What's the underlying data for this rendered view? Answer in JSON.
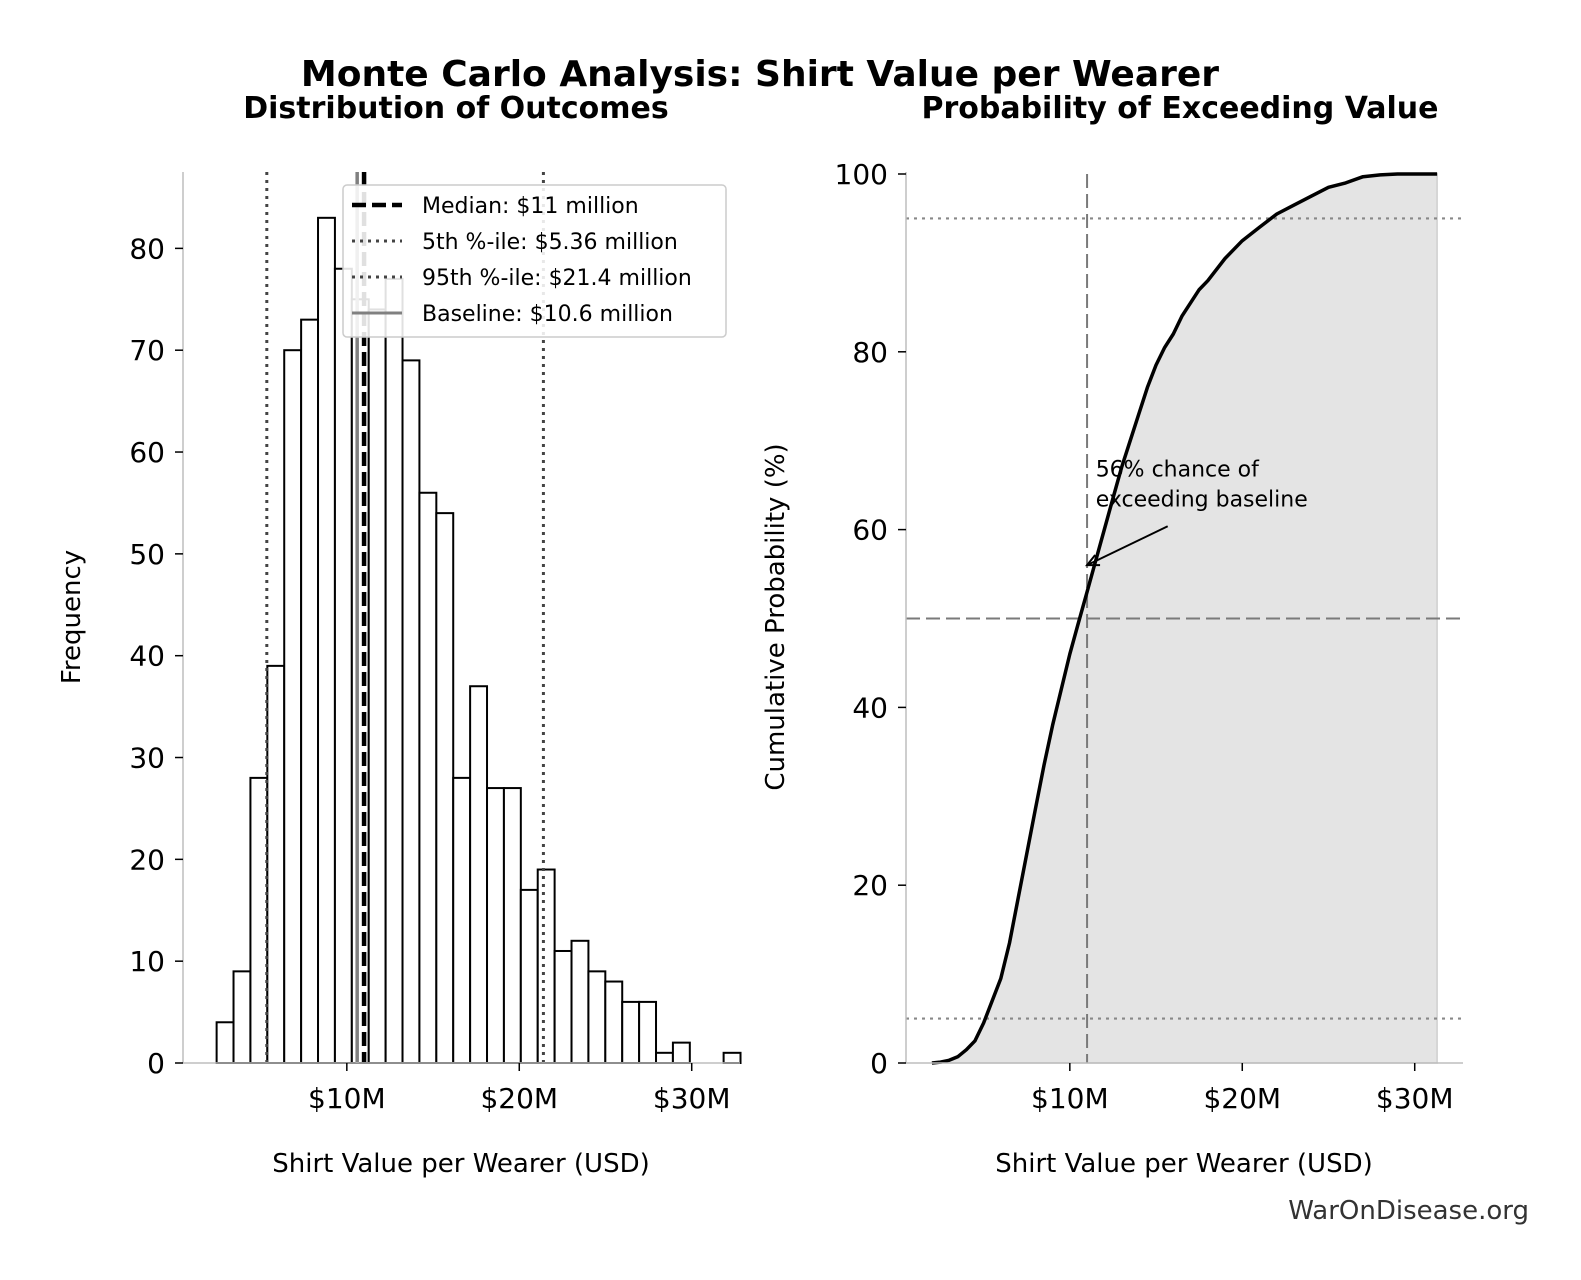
{
  "figure": {
    "title": "Monte Carlo Analysis: Shirt Value per Wearer",
    "watermark": "WarOnDisease.org"
  },
  "chart_data": [
    {
      "type": "bar",
      "title": "Distribution of Outcomes",
      "xlabel": "Shirt Value per Wearer (USD)",
      "ylabel": "Frequency",
      "xlim": [
        0.5,
        32.8
      ],
      "ylim": [
        0,
        87.5
      ],
      "xticks": [
        10,
        20,
        30
      ],
      "xtick_labels": [
        "$10M",
        "$20M",
        "$30M"
      ],
      "yticks": [
        0,
        10,
        20,
        30,
        40,
        50,
        60,
        70,
        80
      ],
      "ytick_labels": [
        "0",
        "10",
        "20",
        "30",
        "40",
        "50",
        "60",
        "70",
        "80"
      ],
      "bins": {
        "start": 2.45,
        "width": 0.98,
        "counts": [
          4,
          9,
          28,
          39,
          70,
          73,
          83,
          78,
          75,
          74,
          77,
          69,
          56,
          54,
          28,
          37,
          27,
          27,
          17,
          19,
          11,
          12,
          9,
          8,
          6,
          6,
          1,
          2,
          0,
          0,
          1
        ]
      },
      "reference_lines": [
        {
          "name": "Median: $11 million",
          "x": 11.0,
          "style": "dashed",
          "color": "#000000"
        },
        {
          "name": "5th %-ile: $5.36 million",
          "x": 5.36,
          "style": "dotted",
          "color": "#444444"
        },
        {
          "name": "95th %-ile: $21.4 million",
          "x": 21.4,
          "style": "dotted",
          "color": "#444444"
        },
        {
          "name": "Baseline: $10.6 million",
          "x": 10.6,
          "style": "solid",
          "color": "#808080"
        }
      ],
      "grid": false,
      "legend": "upper-right"
    },
    {
      "type": "line",
      "title": "Probability of Exceeding Value",
      "xlabel": "Shirt Value per Wearer (USD)",
      "ylabel": "Cumulative Probability (%)",
      "xlim": [
        0.5,
        32.8
      ],
      "ylim": [
        0,
        100
      ],
      "xticks": [
        10,
        20,
        30
      ],
      "xtick_labels": [
        "$10M",
        "$20M",
        "$30M"
      ],
      "yticks": [
        0,
        20,
        40,
        60,
        80,
        100
      ],
      "ytick_labels": [
        "0",
        "20",
        "40",
        "60",
        "80",
        "100"
      ],
      "x": [
        2.0,
        2.5,
        3.0,
        3.5,
        4.0,
        4.5,
        5.0,
        5.5,
        6.0,
        6.5,
        7.0,
        7.5,
        8.0,
        8.5,
        9.0,
        9.5,
        10.0,
        10.5,
        11.0,
        11.5,
        12.0,
        12.5,
        13.0,
        13.5,
        14.0,
        14.5,
        15.0,
        15.5,
        16.0,
        16.5,
        17.0,
        17.5,
        18.0,
        19.0,
        20.0,
        21.0,
        22.0,
        23.0,
        24.0,
        25.0,
        26.0,
        27.0,
        28.0,
        29.0,
        30.0,
        31.3
      ],
      "y": [
        0.0,
        0.1,
        0.3,
        0.7,
        1.5,
        2.5,
        4.5,
        7.0,
        9.5,
        13.5,
        18.5,
        23.5,
        28.5,
        33.5,
        38.0,
        42.0,
        46.0,
        49.5,
        53.0,
        56.5,
        60.0,
        63.5,
        67.0,
        70.0,
        73.0,
        76.0,
        78.5,
        80.5,
        82.0,
        84.0,
        85.5,
        87.0,
        88.0,
        90.5,
        92.5,
        94.0,
        95.5,
        96.5,
        97.5,
        98.5,
        99.0,
        99.7,
        99.9,
        100.0,
        100.0,
        100.0
      ],
      "fill": "below-curve",
      "reference_lines": [
        {
          "orientation": "horizontal",
          "y": 50,
          "style": "dashed"
        },
        {
          "orientation": "horizontal",
          "y": 5,
          "style": "dotted"
        },
        {
          "orientation": "horizontal",
          "y": 95,
          "style": "dotted"
        },
        {
          "orientation": "vertical",
          "x": 11.0,
          "style": "dashed"
        }
      ],
      "annotation": {
        "lines": [
          "56% chance of",
          "exceeding baseline"
        ],
        "target": {
          "x": 11.0,
          "y": 56
        },
        "text_at": {
          "x": 11.5,
          "y": 66
        }
      },
      "grid": false
    }
  ]
}
